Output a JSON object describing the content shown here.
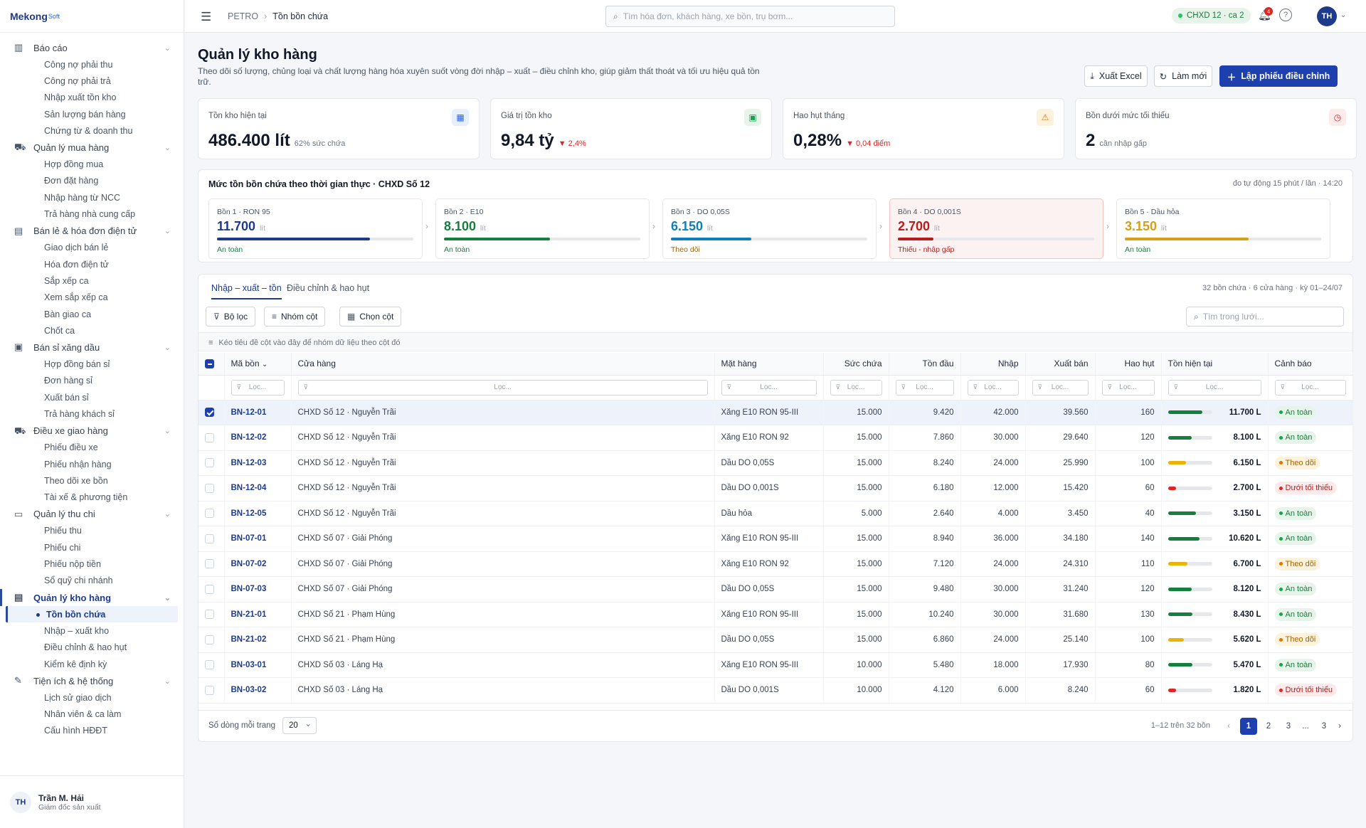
{
  "brand": {
    "name": "Mekong",
    "suffix": "Soft"
  },
  "sidebar": {
    "groups": [
      {
        "label": "Báo cáo",
        "icon": "bar-chart-icon",
        "items": [
          "Công nợ phải thu",
          "Công nợ phải trả",
          "Nhập xuất tồn kho",
          "Sản lượng bán hàng",
          "Chứng từ & doanh thu"
        ]
      },
      {
        "label": "Quản lý mua hàng",
        "icon": "cart-icon",
        "items": [
          "Hợp đồng mua",
          "Đơn đặt hàng",
          "Nhập hàng từ NCC",
          "Trả hàng nhà cung cấp"
        ]
      },
      {
        "label": "Bán lẻ & hóa đơn điện tử",
        "icon": "receipt-icon",
        "items": [
          "Giao dịch bán lẻ",
          "Hóa đơn điện tử",
          "Sắp xếp ca",
          "Xem sắp xếp ca",
          "Bàn giao ca",
          "Chốt ca"
        ]
      },
      {
        "label": "Bán sỉ xăng dầu",
        "icon": "money-icon",
        "items": [
          "Hợp đồng bán sỉ",
          "Đơn hàng sỉ",
          "Xuất bán sỉ",
          "Trả hàng khách sỉ"
        ]
      },
      {
        "label": "Điều xe giao hàng",
        "icon": "truck-icon",
        "items": [
          "Phiếu điều xe",
          "Phiếu nhận hàng",
          "Theo dõi xe bồn",
          "Tài xế & phương tiện"
        ]
      },
      {
        "label": "Quản lý thu chi",
        "icon": "wallet-icon",
        "items": [
          "Phiếu thu",
          "Phiếu chi",
          "Phiếu nộp tiền",
          "Sổ quỹ chi nhánh"
        ]
      },
      {
        "label": "Quản lý kho hàng",
        "icon": "warehouse-icon",
        "active": true,
        "items": [
          "Tồn bồn chứa",
          "Nhập – xuất kho",
          "Điều chỉnh & hao hụt",
          "Kiểm kê định kỳ"
        ]
      },
      {
        "label": "Tiện ích & hệ thống",
        "icon": "wrench-icon",
        "items": [
          "Lịch sử giao dịch",
          "Nhân viên & ca làm",
          "Cấu hình HĐĐT"
        ]
      }
    ],
    "active_item": "Tồn bồn chứa"
  },
  "user": {
    "initials": "TH",
    "name": "Trần M. Hải",
    "role": "Giám đốc sản xuất"
  },
  "topbar": {
    "crumb_root": "PETRO",
    "crumb_current": "Tồn bồn chứa",
    "search_placeholder": "Tìm hóa đơn, khách hàng, xe bồn, trụ bơm...",
    "shift": "CHXD 12 · ca 2",
    "notif_count": "4",
    "avatar": "TH"
  },
  "page": {
    "title": "Quản lý kho hàng",
    "description": "Theo dõi số lượng, chủng loại và chất lượng hàng hóa xuyên suốt vòng đời nhập – xuất – điều chỉnh kho, giúp giảm thất thoát và tối ưu hiệu quả tồn trữ.",
    "btn_export": "Xuất Excel",
    "btn_refresh": "Làm mới",
    "btn_create": "Lập phiếu điều chỉnh"
  },
  "kpis": [
    {
      "label": "Tồn kho hiện tại",
      "value": "486.400 lít",
      "sub": "62% sức chứa",
      "icon": "calendar-icon",
      "color": "#2563eb"
    },
    {
      "label": "Giá trị tồn kho",
      "value": "9,84 tỷ",
      "sub": "▼ 2,4%",
      "icon": "cash-icon",
      "color": "#16a34a"
    },
    {
      "label": "Hao hụt tháng",
      "value": "0,28%",
      "sub": "▼ 0,04 điểm",
      "icon": "warning-icon",
      "color": "#d97706"
    },
    {
      "label": "Bồn dưới mức tối thiểu",
      "value": "2",
      "sub": "cần nhập gấp",
      "icon": "clock-icon",
      "color": "#dc2626"
    }
  ],
  "tanks": {
    "title": "Mức tồn bồn chứa theo thời gian thực · CHXD Số 12",
    "note": "đo tự động 15 phút / lần · 14:20",
    "unit": "lít",
    "items": [
      {
        "name": "Bồn 1 · RON 95",
        "value": "11.700",
        "status": "An toàn",
        "level": 0.78,
        "color": "#1e3a8a",
        "status_color": "#15803d"
      },
      {
        "name": "Bồn 2 · E10",
        "value": "8.100",
        "status": "An toàn",
        "level": 0.54,
        "color": "#15803d",
        "status_color": "#15803d"
      },
      {
        "name": "Bồn 3 · DO 0,05S",
        "value": "6.150",
        "status": "Theo dõi",
        "level": 0.41,
        "color": "#0e7fb8",
        "status_color": "#a16207"
      },
      {
        "name": "Bồn 4 · DO 0,001S",
        "value": "2.700",
        "status": "Thiếu - nhập gấp",
        "level": 0.18,
        "color": "#b91c1c",
        "status_color": "#b91c1c"
      },
      {
        "name": "Bồn 5 · Dầu hỏa",
        "value": "3.150",
        "status": "An toàn",
        "level": 0.63,
        "color": "#d4a017",
        "status_color": "#15803d"
      }
    ]
  },
  "grid": {
    "tabs": [
      "Nhập – xuất – tồn",
      "Điều chỉnh & hao hụt"
    ],
    "info": "32 bồn chứa · 6 cửa hàng · kỳ 01–24/07",
    "tools": [
      "Bộ lọc",
      "Nhóm cột",
      "Chọn cột"
    ],
    "search_placeholder": "Tìm trong lưới...",
    "group_hint": "Kéo tiêu đề cột vào đây để nhóm dữ liệu theo cột đó",
    "filter_placeholder": "Lọc...",
    "columns": [
      "Mã bồn",
      "Cửa hàng",
      "Mặt hàng",
      "Sức chứa",
      "Tồn đầu",
      "Nhập",
      "Xuất bán",
      "Hao hụt",
      "Tồn hiện tại",
      "Cảnh báo"
    ],
    "rows": [
      {
        "code": "BN-12-01",
        "store": "CHXD Số 12 · Nguyễn Trãi",
        "product": "Xăng E10 RON 95-III",
        "cap": "15.000",
        "open": "9.420",
        "in": "42.000",
        "out": "39.560",
        "loss": "160",
        "cur": "11.700 L",
        "level": 0.78,
        "lvl_color": "#15803d",
        "status": "An toàn",
        "st": "ok",
        "selected": true
      },
      {
        "code": "BN-12-02",
        "store": "CHXD Số 12 · Nguyễn Trãi",
        "product": "Xăng E10 RON 92",
        "cap": "15.000",
        "open": "7.860",
        "in": "30.000",
        "out": "29.640",
        "loss": "120",
        "cur": "8.100 L",
        "level": 0.54,
        "lvl_color": "#15803d",
        "status": "An toàn",
        "st": "ok"
      },
      {
        "code": "BN-12-03",
        "store": "CHXD Số 12 · Nguyễn Trãi",
        "product": "Dầu DO 0,05S",
        "cap": "15.000",
        "open": "8.240",
        "in": "24.000",
        "out": "25.990",
        "loss": "100",
        "cur": "6.150 L",
        "level": 0.41,
        "lvl_color": "#eab308",
        "status": "Theo dõi",
        "st": "wt"
      },
      {
        "code": "BN-12-04",
        "store": "CHXD Số 12 · Nguyễn Trãi",
        "product": "Dầu DO 0,001S",
        "cap": "15.000",
        "open": "6.180",
        "in": "12.000",
        "out": "15.420",
        "loss": "60",
        "cur": "2.700 L",
        "level": 0.18,
        "lvl_color": "#dc2626",
        "status": "Dưới tối thiểu",
        "st": "lo"
      },
      {
        "code": "BN-12-05",
        "store": "CHXD Số 12 · Nguyễn Trãi",
        "product": "Dầu hỏa",
        "cap": "5.000",
        "open": "2.640",
        "in": "4.000",
        "out": "3.450",
        "loss": "40",
        "cur": "3.150 L",
        "level": 0.63,
        "lvl_color": "#15803d",
        "status": "An toàn",
        "st": "ok"
      },
      {
        "code": "BN-07-01",
        "store": "CHXD Số 07 · Giải Phóng",
        "product": "Xăng E10 RON 95-III",
        "cap": "15.000",
        "open": "8.940",
        "in": "36.000",
        "out": "34.180",
        "loss": "140",
        "cur": "10.620 L",
        "level": 0.71,
        "lvl_color": "#15803d",
        "status": "An toàn",
        "st": "ok"
      },
      {
        "code": "BN-07-02",
        "store": "CHXD Số 07 · Giải Phóng",
        "product": "Xăng E10 RON 92",
        "cap": "15.000",
        "open": "7.120",
        "in": "24.000",
        "out": "24.310",
        "loss": "110",
        "cur": "6.700 L",
        "level": 0.45,
        "lvl_color": "#eab308",
        "status": "Theo dõi",
        "st": "wt"
      },
      {
        "code": "BN-07-03",
        "store": "CHXD Số 07 · Giải Phóng",
        "product": "Dầu DO 0,05S",
        "cap": "15.000",
        "open": "9.480",
        "in": "30.000",
        "out": "31.240",
        "loss": "120",
        "cur": "8.120 L",
        "level": 0.54,
        "lvl_color": "#15803d",
        "status": "An toàn",
        "st": "ok"
      },
      {
        "code": "BN-21-01",
        "store": "CHXD Số 21 · Phạm Hùng",
        "product": "Xăng E10 RON 95-III",
        "cap": "15.000",
        "open": "10.240",
        "in": "30.000",
        "out": "31.680",
        "loss": "130",
        "cur": "8.430 L",
        "level": 0.56,
        "lvl_color": "#15803d",
        "status": "An toàn",
        "st": "ok"
      },
      {
        "code": "BN-21-02",
        "store": "CHXD Số 21 · Phạm Hùng",
        "product": "Dầu DO 0,05S",
        "cap": "15.000",
        "open": "6.860",
        "in": "24.000",
        "out": "25.140",
        "loss": "100",
        "cur": "5.620 L",
        "level": 0.37,
        "lvl_color": "#eab308",
        "status": "Theo dõi",
        "st": "wt"
      },
      {
        "code": "BN-03-01",
        "store": "CHXD Số 03 · Láng Hạ",
        "product": "Xăng E10 RON 95-III",
        "cap": "10.000",
        "open": "5.480",
        "in": "18.000",
        "out": "17.930",
        "loss": "80",
        "cur": "5.470 L",
        "level": 0.55,
        "lvl_color": "#15803d",
        "status": "An toàn",
        "st": "ok"
      },
      {
        "code": "BN-03-02",
        "store": "CHXD Số 03 · Láng Hạ",
        "product": "Dầu DO 0,001S",
        "cap": "10.000",
        "open": "4.120",
        "in": "6.000",
        "out": "8.240",
        "loss": "60",
        "cur": "1.820 L",
        "level": 0.18,
        "lvl_color": "#dc2626",
        "status": "Dưới tối thiểu",
        "st": "lo"
      }
    ],
    "page_size_label": "Số dòng mỗi trang",
    "page_size": "20",
    "page_info": "1–12 trên 32 bồn",
    "pages": [
      "1",
      "2",
      "3",
      "...",
      "3"
    ]
  }
}
